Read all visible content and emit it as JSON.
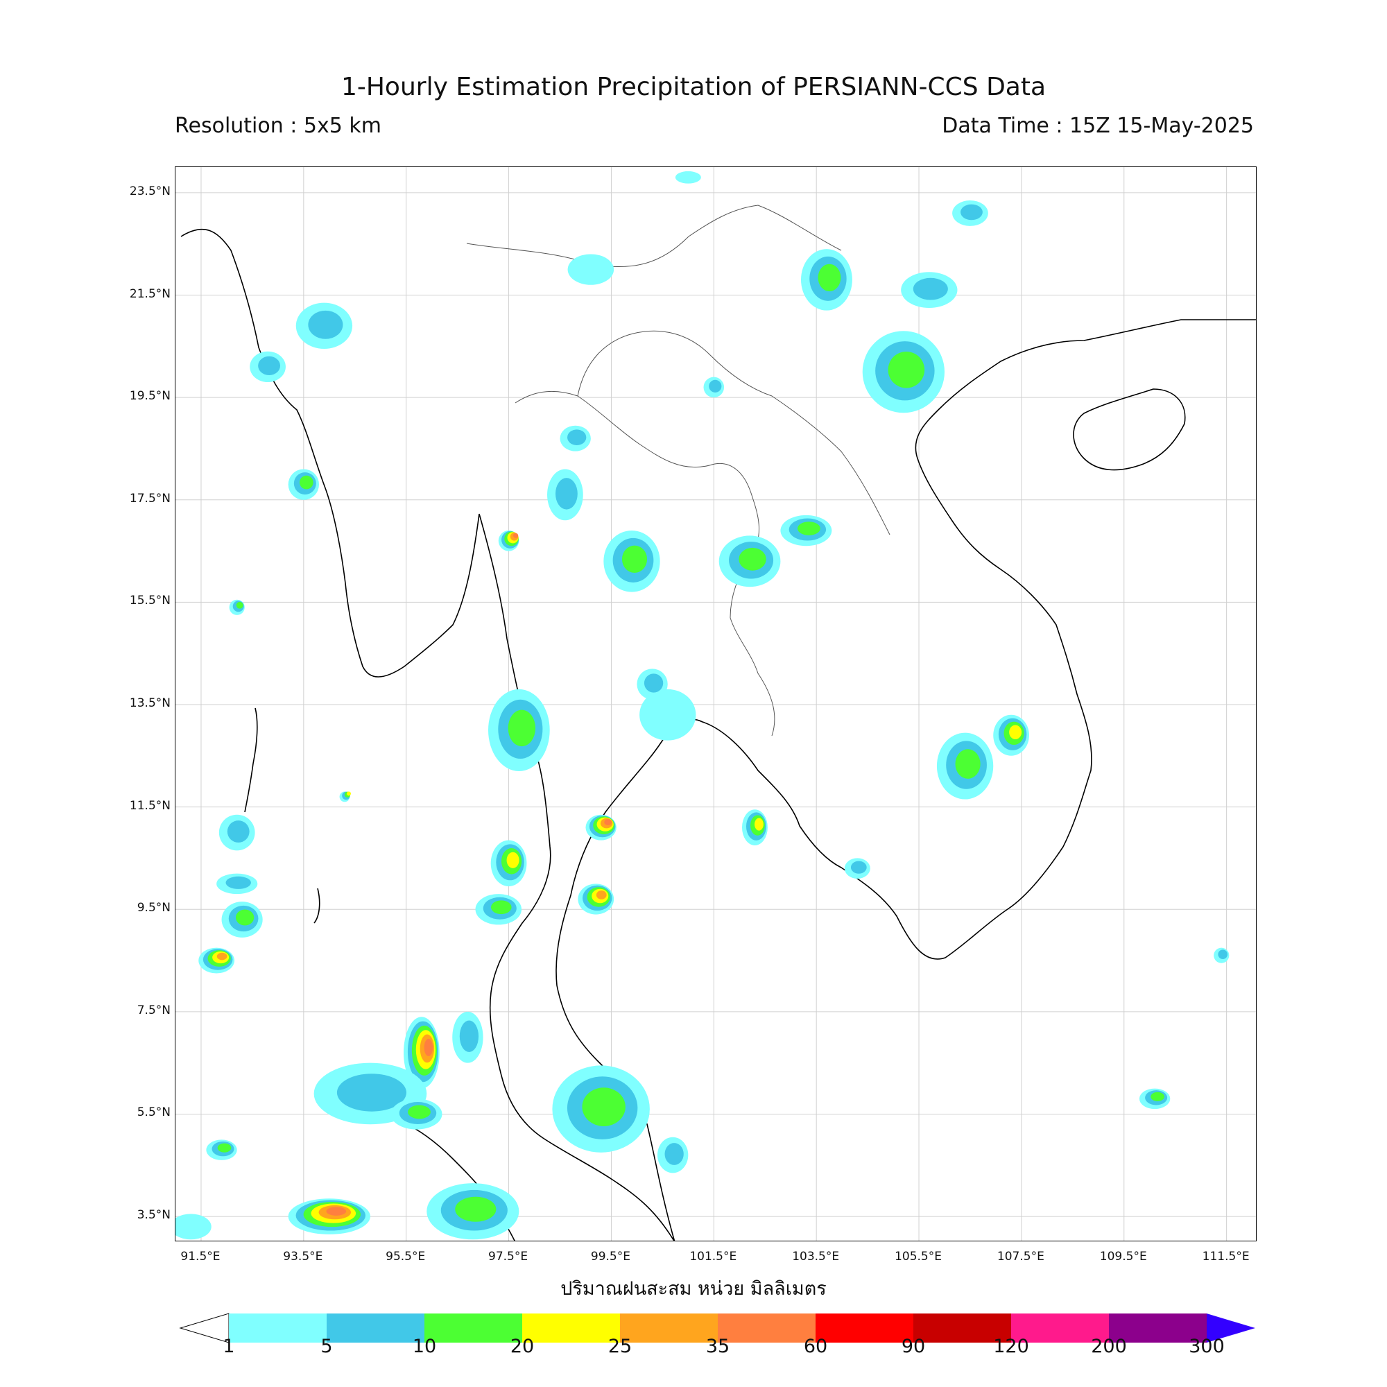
{
  "title": "1-Hourly Estimation Precipitation of PERSIANN-CCS Data",
  "resolution": "Resolution : 5x5 km",
  "data_time": "Data Time : 15Z 15-May-2025",
  "x_axis_label": "ปริมาณฝนสะสม หน่วย มิลลิเมตร",
  "lat_ticks": [
    "23.5°N",
    "21.5°N",
    "19.5°N",
    "17.5°N",
    "15.5°N",
    "13.5°N",
    "11.5°N",
    "9.5°N",
    "7.5°N",
    "5.5°N",
    "3.5°N"
  ],
  "lon_ticks": [
    "91.5°E",
    "93.5°E",
    "95.5°E",
    "97.5°E",
    "99.5°E",
    "101.5°E",
    "103.5°E",
    "105.5°E",
    "107.5°E",
    "109.5°E",
    "111.5°E"
  ],
  "colorbar": {
    "ticks": [
      "1",
      "5",
      "10",
      "20",
      "25",
      "35",
      "60",
      "90",
      "120",
      "200",
      "300"
    ],
    "colors": [
      "#80ffff",
      "#41c8e8",
      "#4cff33",
      "#ffff00",
      "#ffa51e",
      "#ff7f3f",
      "#ff0000",
      "#c80000",
      "#ff1a8c",
      "#8c008c"
    ],
    "over_color": "#3300ff",
    "under_color": "#ffffff"
  },
  "map": {
    "extent_lon": [
      91.0,
      112.1
    ],
    "extent_lat": [
      3.0,
      24.0
    ],
    "rain_levels_shown": [
      "1",
      "5",
      "10",
      "20",
      "25",
      "35"
    ],
    "rain_cells": [
      {
        "lon": 93.9,
        "lat": 20.9,
        "rx": 0.55,
        "ry": 0.45,
        "lvl": 2
      },
      {
        "lon": 92.8,
        "lat": 20.1,
        "rx": 0.35,
        "ry": 0.3,
        "lvl": 2
      },
      {
        "lon": 93.5,
        "lat": 17.8,
        "rx": 0.3,
        "ry": 0.3,
        "lvl": 3
      },
      {
        "lon": 99.1,
        "lat": 22.0,
        "rx": 0.45,
        "ry": 0.3,
        "lvl": 1
      },
      {
        "lon": 101.0,
        "lat": 23.8,
        "rx": 0.25,
        "ry": 0.12,
        "lvl": 1
      },
      {
        "lon": 103.7,
        "lat": 21.8,
        "rx": 0.5,
        "ry": 0.6,
        "lvl": 3
      },
      {
        "lon": 105.7,
        "lat": 21.6,
        "rx": 0.55,
        "ry": 0.35,
        "lvl": 2
      },
      {
        "lon": 106.5,
        "lat": 23.1,
        "rx": 0.35,
        "ry": 0.25,
        "lvl": 2
      },
      {
        "lon": 105.2,
        "lat": 20.0,
        "rx": 0.8,
        "ry": 0.8,
        "lvl": 3
      },
      {
        "lon": 101.5,
        "lat": 19.7,
        "rx": 0.2,
        "ry": 0.2,
        "lvl": 2
      },
      {
        "lon": 98.8,
        "lat": 18.7,
        "rx": 0.3,
        "ry": 0.25,
        "lvl": 2
      },
      {
        "lon": 98.6,
        "lat": 17.6,
        "rx": 0.35,
        "ry": 0.5,
        "lvl": 2
      },
      {
        "lon": 97.5,
        "lat": 16.7,
        "rx": 0.2,
        "ry": 0.2,
        "lvl": 6
      },
      {
        "lon": 99.9,
        "lat": 16.3,
        "rx": 0.55,
        "ry": 0.6,
        "lvl": 3
      },
      {
        "lon": 102.2,
        "lat": 16.3,
        "rx": 0.6,
        "ry": 0.5,
        "lvl": 3
      },
      {
        "lon": 103.3,
        "lat": 16.9,
        "rx": 0.5,
        "ry": 0.3,
        "lvl": 3
      },
      {
        "lon": 100.6,
        "lat": 13.3,
        "rx": 0.55,
        "ry": 0.5,
        "lvl": 1
      },
      {
        "lon": 97.7,
        "lat": 13.0,
        "rx": 0.6,
        "ry": 0.8,
        "lvl": 3
      },
      {
        "lon": 106.4,
        "lat": 12.3,
        "rx": 0.55,
        "ry": 0.65,
        "lvl": 3
      },
      {
        "lon": 107.3,
        "lat": 12.9,
        "rx": 0.35,
        "ry": 0.4,
        "lvl": 4
      },
      {
        "lon": 102.3,
        "lat": 11.1,
        "rx": 0.25,
        "ry": 0.35,
        "lvl": 4
      },
      {
        "lon": 99.3,
        "lat": 11.1,
        "rx": 0.3,
        "ry": 0.25,
        "lvl": 6
      },
      {
        "lon": 97.5,
        "lat": 10.4,
        "rx": 0.35,
        "ry": 0.45,
        "lvl": 4
      },
      {
        "lon": 97.3,
        "lat": 9.5,
        "rx": 0.45,
        "ry": 0.3,
        "lvl": 3
      },
      {
        "lon": 99.2,
        "lat": 9.7,
        "rx": 0.35,
        "ry": 0.3,
        "lvl": 5
      },
      {
        "lon": 92.2,
        "lat": 11.0,
        "rx": 0.35,
        "ry": 0.35,
        "lvl": 2
      },
      {
        "lon": 92.2,
        "lat": 10.0,
        "rx": 0.4,
        "ry": 0.2,
        "lvl": 2
      },
      {
        "lon": 92.3,
        "lat": 9.3,
        "rx": 0.4,
        "ry": 0.35,
        "lvl": 3
      },
      {
        "lon": 91.8,
        "lat": 8.5,
        "rx": 0.35,
        "ry": 0.25,
        "lvl": 5
      },
      {
        "lon": 95.8,
        "lat": 6.7,
        "rx": 0.35,
        "ry": 0.7,
        "lvl": 6
      },
      {
        "lon": 94.8,
        "lat": 5.9,
        "rx": 1.1,
        "ry": 0.6,
        "lvl": 2
      },
      {
        "lon": 95.7,
        "lat": 5.5,
        "rx": 0.5,
        "ry": 0.3,
        "lvl": 3
      },
      {
        "lon": 99.3,
        "lat": 5.6,
        "rx": 0.95,
        "ry": 0.85,
        "lvl": 3
      },
      {
        "lon": 96.7,
        "lat": 7.0,
        "rx": 0.3,
        "ry": 0.5,
        "lvl": 2
      },
      {
        "lon": 96.8,
        "lat": 3.6,
        "rx": 0.9,
        "ry": 0.55,
        "lvl": 3
      },
      {
        "lon": 94.0,
        "lat": 3.5,
        "rx": 0.8,
        "ry": 0.35,
        "lvl": 6
      },
      {
        "lon": 91.9,
        "lat": 4.8,
        "rx": 0.3,
        "ry": 0.2,
        "lvl": 3
      },
      {
        "lon": 100.7,
        "lat": 4.7,
        "rx": 0.3,
        "ry": 0.35,
        "lvl": 2
      },
      {
        "lon": 91.3,
        "lat": 3.3,
        "rx": 0.4,
        "ry": 0.25,
        "lvl": 1
      },
      {
        "lon": 110.1,
        "lat": 5.8,
        "rx": 0.3,
        "ry": 0.2,
        "lvl": 3
      },
      {
        "lon": 111.4,
        "lat": 8.6,
        "rx": 0.15,
        "ry": 0.15,
        "lvl": 2
      },
      {
        "lon": 104.3,
        "lat": 10.3,
        "rx": 0.25,
        "ry": 0.2,
        "lvl": 2
      },
      {
        "lon": 92.2,
        "lat": 15.4,
        "rx": 0.15,
        "ry": 0.15,
        "lvl": 3
      },
      {
        "lon": 94.3,
        "lat": 11.7,
        "rx": 0.1,
        "ry": 0.1,
        "lvl": 4
      },
      {
        "lon": 100.3,
        "lat": 13.9,
        "rx": 0.3,
        "ry": 0.3,
        "lvl": 2
      }
    ]
  }
}
